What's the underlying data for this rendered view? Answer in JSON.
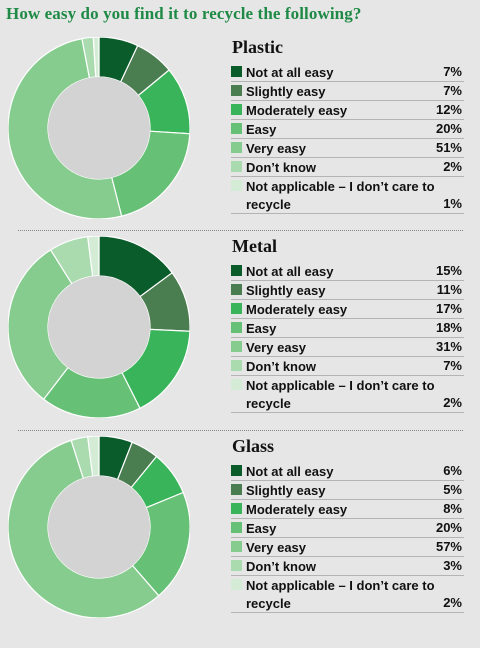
{
  "header": {
    "question": "How easy do you find it to recycle the following?"
  },
  "legend_colors": [
    "#0a5c2a",
    "#4a7d50",
    "#3ab45a",
    "#66c076",
    "#87cc8f",
    "#a9dbae",
    "#d4ecd6"
  ],
  "chart_data": [
    {
      "type": "pie",
      "title": "Plastic",
      "categories": [
        "Not at all easy",
        "Slightly easy",
        "Moderately easy",
        "Easy",
        "Very easy",
        "Don’t know",
        "Not applicable – I don’t care to recycle"
      ],
      "values": [
        7,
        7,
        12,
        20,
        51,
        2,
        1
      ],
      "value_labels": [
        "7%",
        "7%",
        "12%",
        "20%",
        "51%",
        "2%",
        "1%"
      ],
      "unit": "%"
    },
    {
      "type": "pie",
      "title": "Metal",
      "categories": [
        "Not at all easy",
        "Slightly easy",
        "Moderately easy",
        "Easy",
        "Very easy",
        "Don’t know",
        "Not applicable – I don’t care to recycle"
      ],
      "values": [
        15,
        11,
        17,
        18,
        31,
        7,
        2
      ],
      "value_labels": [
        "15%",
        "11%",
        "17%",
        "18%",
        "31%",
        "7%",
        "2%"
      ],
      "unit": "%"
    },
    {
      "type": "pie",
      "title": "Glass",
      "categories": [
        "Not at all easy",
        "Slightly easy",
        "Moderately easy",
        "Easy",
        "Very easy",
        "Don’t know",
        "Not applicable – I don’t care to recycle"
      ],
      "values": [
        6,
        5,
        8,
        20,
        57,
        3,
        2
      ],
      "value_labels": [
        "6%",
        "5%",
        "8%",
        "20%",
        "57%",
        "3%",
        "2%"
      ],
      "unit": "%"
    }
  ]
}
